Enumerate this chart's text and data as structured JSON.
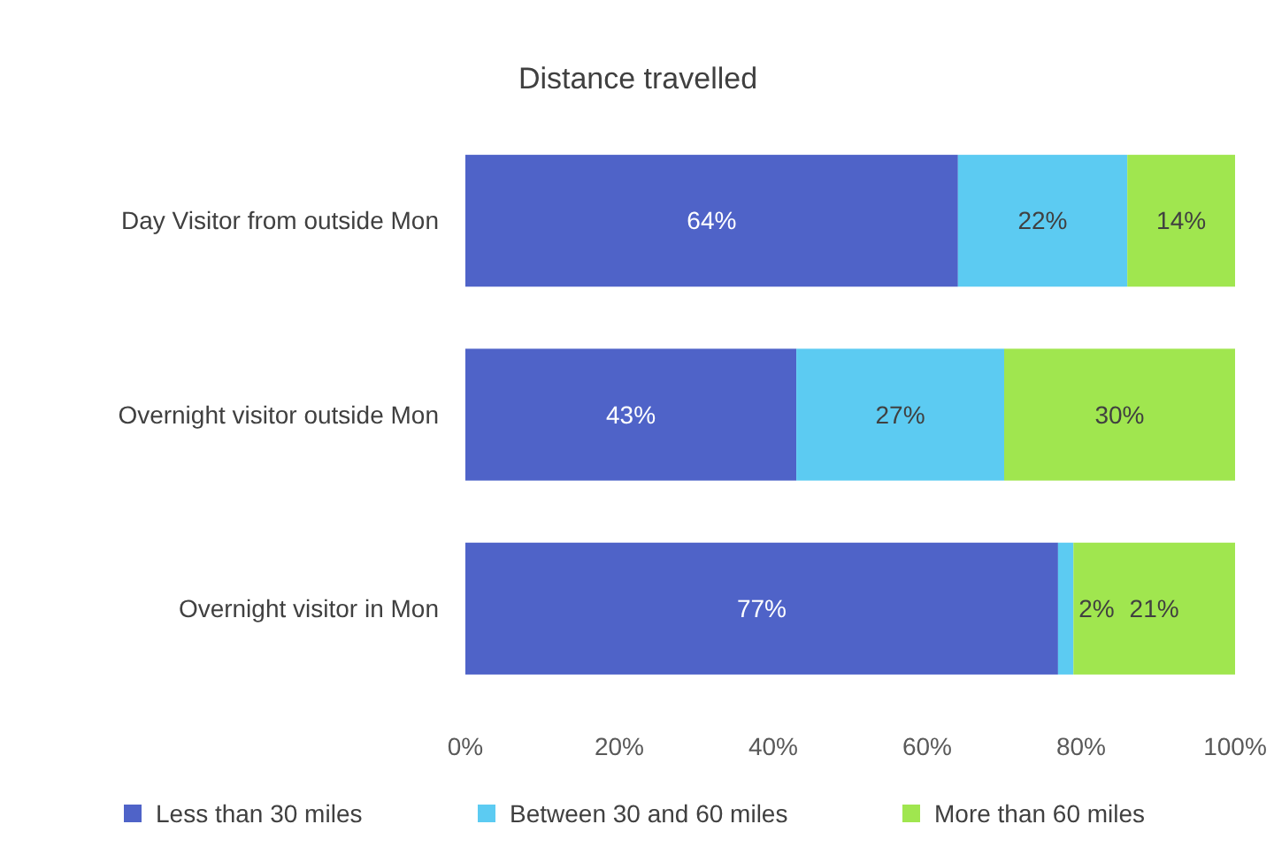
{
  "chart_data": {
    "type": "bar",
    "title": "Distance travelled",
    "orientation": "horizontal",
    "stacked": true,
    "categories": [
      "Day Visitor from outside Mon",
      "Overnight visitor outside Mon",
      "Overnight visitor in Mon"
    ],
    "series": [
      {
        "name": "Less than 30 miles",
        "color": "#4f63c8",
        "values": [
          64,
          43,
          77
        ],
        "value_labels": [
          "64%",
          "43%",
          "77%"
        ]
      },
      {
        "name": "Between 30 and 60 miles",
        "color": "#5ccbf2",
        "values": [
          22,
          27,
          2
        ],
        "value_labels": [
          "22%",
          "27%",
          "2%"
        ]
      },
      {
        "name": "More than 60 miles",
        "color": "#a0e64f",
        "values": [
          14,
          30,
          21
        ],
        "value_labels": [
          "14%",
          "30%",
          "21%"
        ]
      }
    ],
    "xlim": [
      0,
      100
    ],
    "xticks": [
      {
        "value": 0,
        "label": "0%"
      },
      {
        "value": 20,
        "label": "20%"
      },
      {
        "value": 40,
        "label": "40%"
      },
      {
        "value": 60,
        "label": "60%"
      },
      {
        "value": 80,
        "label": "80%"
      },
      {
        "value": 100,
        "label": "100%"
      }
    ],
    "legend": "bottom"
  }
}
